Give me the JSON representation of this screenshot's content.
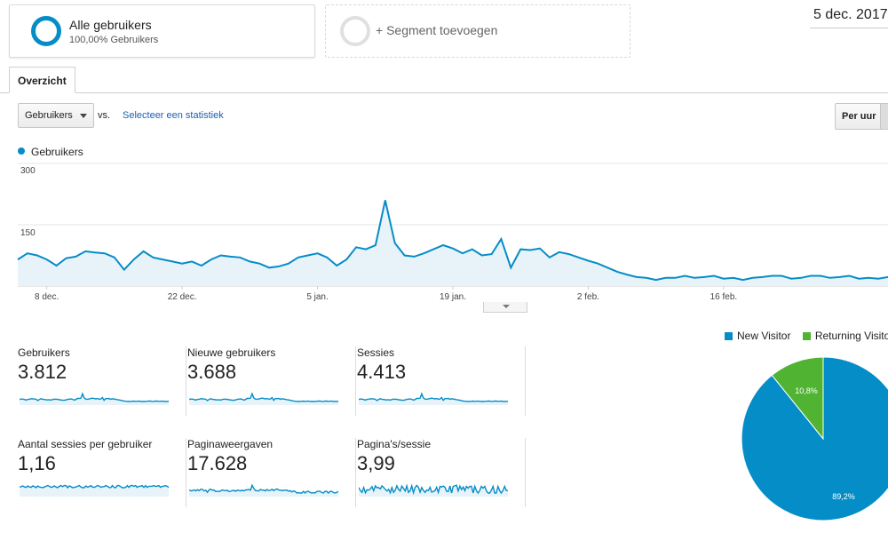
{
  "segments": {
    "active": {
      "title": "Alle gebruikers",
      "subtitle": "100,00% Gebruikers"
    },
    "add_label": "+ Segment toevoegen"
  },
  "date_range": "5 dec. 2017",
  "tabs": [
    {
      "label": "Overzicht"
    }
  ],
  "controls": {
    "metric_select": "Gebruikers",
    "vs_label": "vs.",
    "select_metric_link": "Selecteer een statistiek",
    "granularity_label": "Per uur"
  },
  "chart_data": {
    "type": "area",
    "series": [
      {
        "name": "Gebruikers",
        "color": "#058dc7",
        "values": [
          65,
          80,
          75,
          65,
          50,
          68,
          72,
          85,
          82,
          80,
          70,
          40,
          65,
          85,
          70,
          65,
          60,
          55,
          60,
          50,
          65,
          75,
          72,
          70,
          60,
          55,
          45,
          48,
          55,
          70,
          75,
          80,
          70,
          50,
          65,
          95,
          90,
          100,
          210,
          105,
          75,
          72,
          80,
          90,
          100,
          92,
          80,
          90,
          75,
          78,
          115,
          45,
          90,
          88,
          92,
          70,
          83,
          78,
          70,
          62,
          55,
          45,
          35,
          28,
          22,
          20,
          15,
          20,
          20,
          25,
          20,
          22,
          25,
          18,
          20,
          15,
          20,
          22,
          25,
          25,
          18,
          20,
          25,
          25,
          20,
          22,
          25,
          18,
          20,
          18,
          22
        ],
        "labels_shown": [
          "300",
          "150"
        ]
      }
    ],
    "x_ticks": [
      "8 dec.",
      "22 dec.",
      "5 jan.",
      "19 jan.",
      "2 feb.",
      "16 feb."
    ],
    "y_ticks": [
      150,
      300
    ],
    "ylim": [
      0,
      300
    ],
    "grid": true
  },
  "metrics": [
    {
      "name": "Gebruikers",
      "value": "3.812"
    },
    {
      "name": "Nieuwe gebruikers",
      "value": "3.688"
    },
    {
      "name": "Sessies",
      "value": "4.413"
    },
    {
      "name": "Aantal sessies per gebruiker",
      "value": "1,16"
    },
    {
      "name": "Paginaweergaven",
      "value": "17.628"
    },
    {
      "name": "Pagina's/sessie",
      "value": "3,99"
    }
  ],
  "pie": {
    "legend": [
      {
        "label": "New Visitor",
        "color": "#058dc7"
      },
      {
        "label": "Returning Visitor",
        "color": "#50b432"
      }
    ],
    "slices": [
      {
        "label": "89,2%",
        "value": 89.2,
        "color": "#058dc7"
      },
      {
        "label": "10,8%",
        "value": 10.8,
        "color": "#50b432"
      }
    ]
  },
  "icons": {
    "segment_ring": "donut-ring-icon",
    "dropdown_caret": "chevron-down-icon",
    "handle_arrow": "triangle-down-icon"
  }
}
